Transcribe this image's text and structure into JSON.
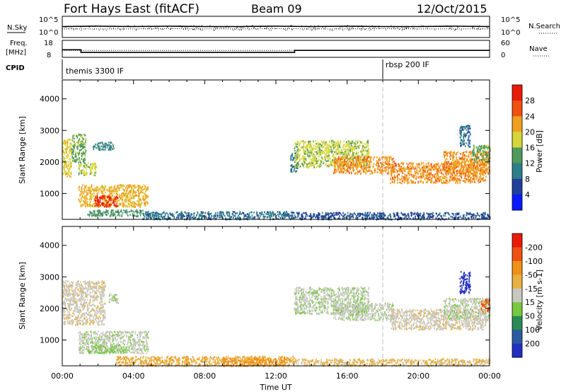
{
  "header": {
    "station": "Fort Hays East (fitACF)",
    "beam": "Beam 09",
    "date": "12/Oct/2015"
  },
  "labels": {
    "nsky": "N.Sky",
    "nsearch": "N.Search",
    "freq_line1": "Freq.",
    "freq_line2": "[MHz]",
    "nave": "Nave",
    "cpid": "CPID",
    "cpid_first": "themis 3300 IF",
    "cpid_second": "rbsp 200 IF",
    "slant_range": "Slant Range [km]",
    "time_ut": "Time UT",
    "noise_left_top": "10^5",
    "noise_left_bottom": "10^0",
    "noise_right_top": "10^5",
    "noise_right_bottom": "10^0",
    "freq_left_top": "18",
    "freq_left_bottom": "8",
    "nave_right_top": "60",
    "nave_right_bottom": "0"
  },
  "chart_data": [
    {
      "type": "line",
      "panel": "noise",
      "x_ticks": [
        "00:00",
        "04:00",
        "08:00",
        "12:00",
        "16:00",
        "20:00",
        "00:00"
      ],
      "series": [
        {
          "name": "N.Sky",
          "x": [
            0,
            2,
            4,
            6,
            8,
            10,
            12,
            14,
            16,
            18,
            20,
            22,
            24
          ],
          "y": [
            2.6,
            2.7,
            2.6,
            2.7,
            2.6,
            2.6,
            2.7,
            2.6,
            2.7,
            2.6,
            2.6,
            2.7,
            2.6
          ]
        },
        {
          "name": "N.Search",
          "x": [
            0,
            2,
            4,
            6,
            8,
            10,
            12,
            14,
            16,
            18,
            20,
            22,
            24
          ],
          "y": [
            1.9,
            1.9,
            1.9,
            2.0,
            1.9,
            1.9,
            2.0,
            1.9,
            1.9,
            2.0,
            1.9,
            1.9,
            1.9
          ]
        }
      ]
    },
    {
      "type": "line",
      "panel": "frequency",
      "series": [
        {
          "name": "Freq.",
          "x": [
            0,
            1.05,
            1.05,
            13.05,
            13.05,
            24
          ],
          "y": [
            12.4,
            12.4,
            10.7,
            10.7,
            12.0,
            12.0
          ]
        },
        {
          "name": "Nave",
          "x": [
            0,
            24
          ],
          "y": [
            24,
            24
          ]
        }
      ],
      "cpid_change_hour": 18
    },
    {
      "type": "heatmap",
      "panel": "power",
      "ylabel": "Slant Range [km]",
      "y_ticks": [
        "1000",
        "2000",
        "3000",
        "4000"
      ],
      "ylim": [
        180,
        4600
      ],
      "colorbar_label": "Power [dB]",
      "colorbar_ticks": [
        "4",
        "8",
        "12",
        "16",
        "20",
        "24",
        "28"
      ],
      "colors": [
        "#0a1aff",
        "#1f3f9a",
        "#2d7d8a",
        "#4f9a5a",
        "#d6d63a",
        "#f0a020",
        "#f05010",
        "#e81a0a"
      ],
      "regions": [
        {
          "t0": 0.0,
          "t1": 0.5,
          "r0": 1550,
          "r1": 2750,
          "level": 4
        },
        {
          "t0": 0.5,
          "t1": 1.3,
          "r0": 2000,
          "r1": 2900,
          "level": 3
        },
        {
          "t0": 0.9,
          "t1": 1.9,
          "r0": 1600,
          "r1": 2000,
          "level": 4
        },
        {
          "t0": 1.7,
          "t1": 2.9,
          "r0": 2400,
          "r1": 2650,
          "level": 2
        },
        {
          "t0": 0.9,
          "t1": 4.8,
          "r0": 600,
          "r1": 1300,
          "level": 5
        },
        {
          "t0": 1.8,
          "t1": 3.1,
          "r0": 600,
          "r1": 950,
          "level": 7
        },
        {
          "t0": 1.4,
          "t1": 4.5,
          "r0": 300,
          "r1": 500,
          "level": 3
        },
        {
          "t0": 4.5,
          "t1": 13.0,
          "r0": 200,
          "r1": 450,
          "level": 2
        },
        {
          "t0": 12.8,
          "t1": 13.2,
          "r0": 1700,
          "r1": 2300,
          "level": 2
        },
        {
          "t0": 13.0,
          "t1": 17.2,
          "r0": 1850,
          "r1": 2700,
          "level": 4
        },
        {
          "t0": 15.2,
          "t1": 18.6,
          "r0": 1650,
          "r1": 2200,
          "level": 5
        },
        {
          "t0": 18.4,
          "t1": 23.8,
          "r0": 1350,
          "r1": 2000,
          "level": 5
        },
        {
          "t0": 21.4,
          "t1": 24.0,
          "r0": 1650,
          "r1": 2350,
          "level": 5
        },
        {
          "t0": 23.0,
          "t1": 24.0,
          "r0": 2000,
          "r1": 2550,
          "level": 3
        },
        {
          "t0": 22.3,
          "t1": 22.9,
          "r0": 2500,
          "r1": 3200,
          "level": 2
        },
        {
          "t0": 13.0,
          "t1": 24.0,
          "r0": 200,
          "r1": 420,
          "level": 1
        }
      ]
    },
    {
      "type": "heatmap",
      "panel": "velocity",
      "ylabel": "Slant Range [km]",
      "y_ticks": [
        "1000",
        "2000",
        "3000",
        "4000"
      ],
      "ylim": [
        180,
        4600
      ],
      "xlabel": "Time UT",
      "x_ticks": [
        "00:00",
        "04:00",
        "08:00",
        "12:00",
        "16:00",
        "20:00",
        "00:00"
      ],
      "colorbar_label": "Velocity [m s-1]",
      "colorbar_ticks": [
        "200",
        "100",
        "50",
        "15",
        "-15",
        "-50",
        "-100",
        "-200"
      ],
      "colors": [
        "#2030c0",
        "#2c5aa0",
        "#2a8a58",
        "#78c840",
        "#c8c8c0",
        "#e8b040",
        "#f09018",
        "#f05010",
        "#e81a0a"
      ],
      "regions": [
        {
          "t0": 0.0,
          "t1": 2.4,
          "r0": 1500,
          "r1": 2900,
          "level": 4
        },
        {
          "t0": 2.6,
          "t1": 3.1,
          "r0": 2200,
          "r1": 2500,
          "level": 4
        },
        {
          "t0": 0.9,
          "t1": 4.8,
          "r0": 600,
          "r1": 1300,
          "level": 4
        },
        {
          "t0": 1.4,
          "t1": 3.6,
          "r0": 600,
          "r1": 850,
          "level": 3
        },
        {
          "t0": 3.0,
          "t1": 13.0,
          "r0": 200,
          "r1": 500,
          "level": 5
        },
        {
          "t0": 9.0,
          "t1": 12.5,
          "r0": 200,
          "r1": 450,
          "level": 6
        },
        {
          "t0": 13.0,
          "t1": 17.2,
          "r0": 1850,
          "r1": 2700,
          "level": 4
        },
        {
          "t0": 15.2,
          "t1": 18.6,
          "r0": 1650,
          "r1": 2200,
          "level": 4
        },
        {
          "t0": 18.4,
          "t1": 23.8,
          "r0": 1350,
          "r1": 2000,
          "level": 4
        },
        {
          "t0": 21.4,
          "t1": 24.0,
          "r0": 1650,
          "r1": 2350,
          "level": 4
        },
        {
          "t0": 23.5,
          "t1": 24.0,
          "r0": 1900,
          "r1": 2300,
          "level": 7
        },
        {
          "t0": 22.3,
          "t1": 22.9,
          "r0": 2500,
          "r1": 3200,
          "level": 0
        },
        {
          "t0": 13.0,
          "t1": 24.0,
          "r0": 200,
          "r1": 420,
          "level": 5
        }
      ]
    }
  ]
}
